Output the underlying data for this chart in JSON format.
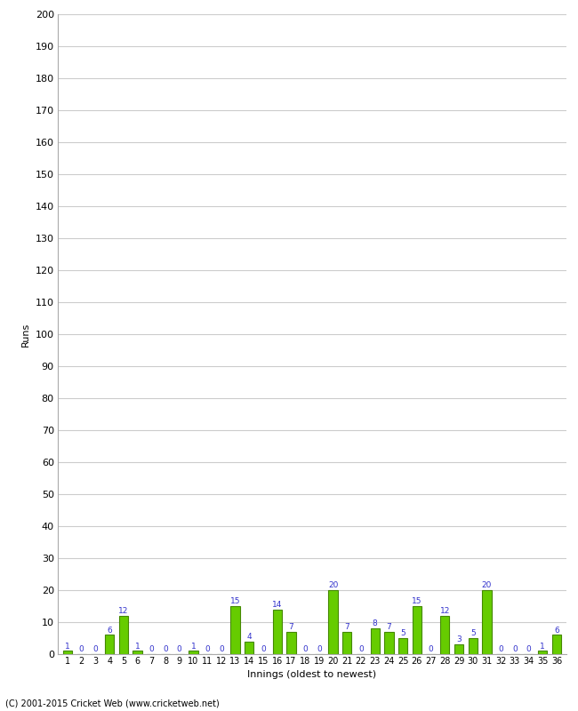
{
  "innings": [
    1,
    2,
    3,
    4,
    5,
    6,
    7,
    8,
    9,
    10,
    11,
    12,
    13,
    14,
    15,
    16,
    17,
    18,
    19,
    20,
    21,
    22,
    23,
    24,
    25,
    26,
    27,
    28,
    29,
    30,
    31,
    32,
    33,
    34,
    35,
    36
  ],
  "values": [
    1,
    0,
    0,
    6,
    12,
    1,
    0,
    0,
    0,
    1,
    0,
    0,
    15,
    4,
    0,
    14,
    7,
    0,
    0,
    20,
    7,
    0,
    8,
    7,
    5,
    15,
    0,
    12,
    3,
    5,
    20,
    0,
    0,
    0,
    1,
    6
  ],
  "bar_color": "#66cc00",
  "bar_edge_color": "#448800",
  "label_color": "#3333cc",
  "ylabel": "Runs",
  "xlabel": "Innings (oldest to newest)",
  "ylim": [
    0,
    200
  ],
  "yticks": [
    0,
    10,
    20,
    30,
    40,
    50,
    60,
    70,
    80,
    90,
    100,
    110,
    120,
    130,
    140,
    150,
    160,
    170,
    180,
    190,
    200
  ],
  "background_color": "#ffffff",
  "grid_color": "#cccccc",
  "footer": "(C) 2001-2015 Cricket Web (www.cricketweb.net)"
}
